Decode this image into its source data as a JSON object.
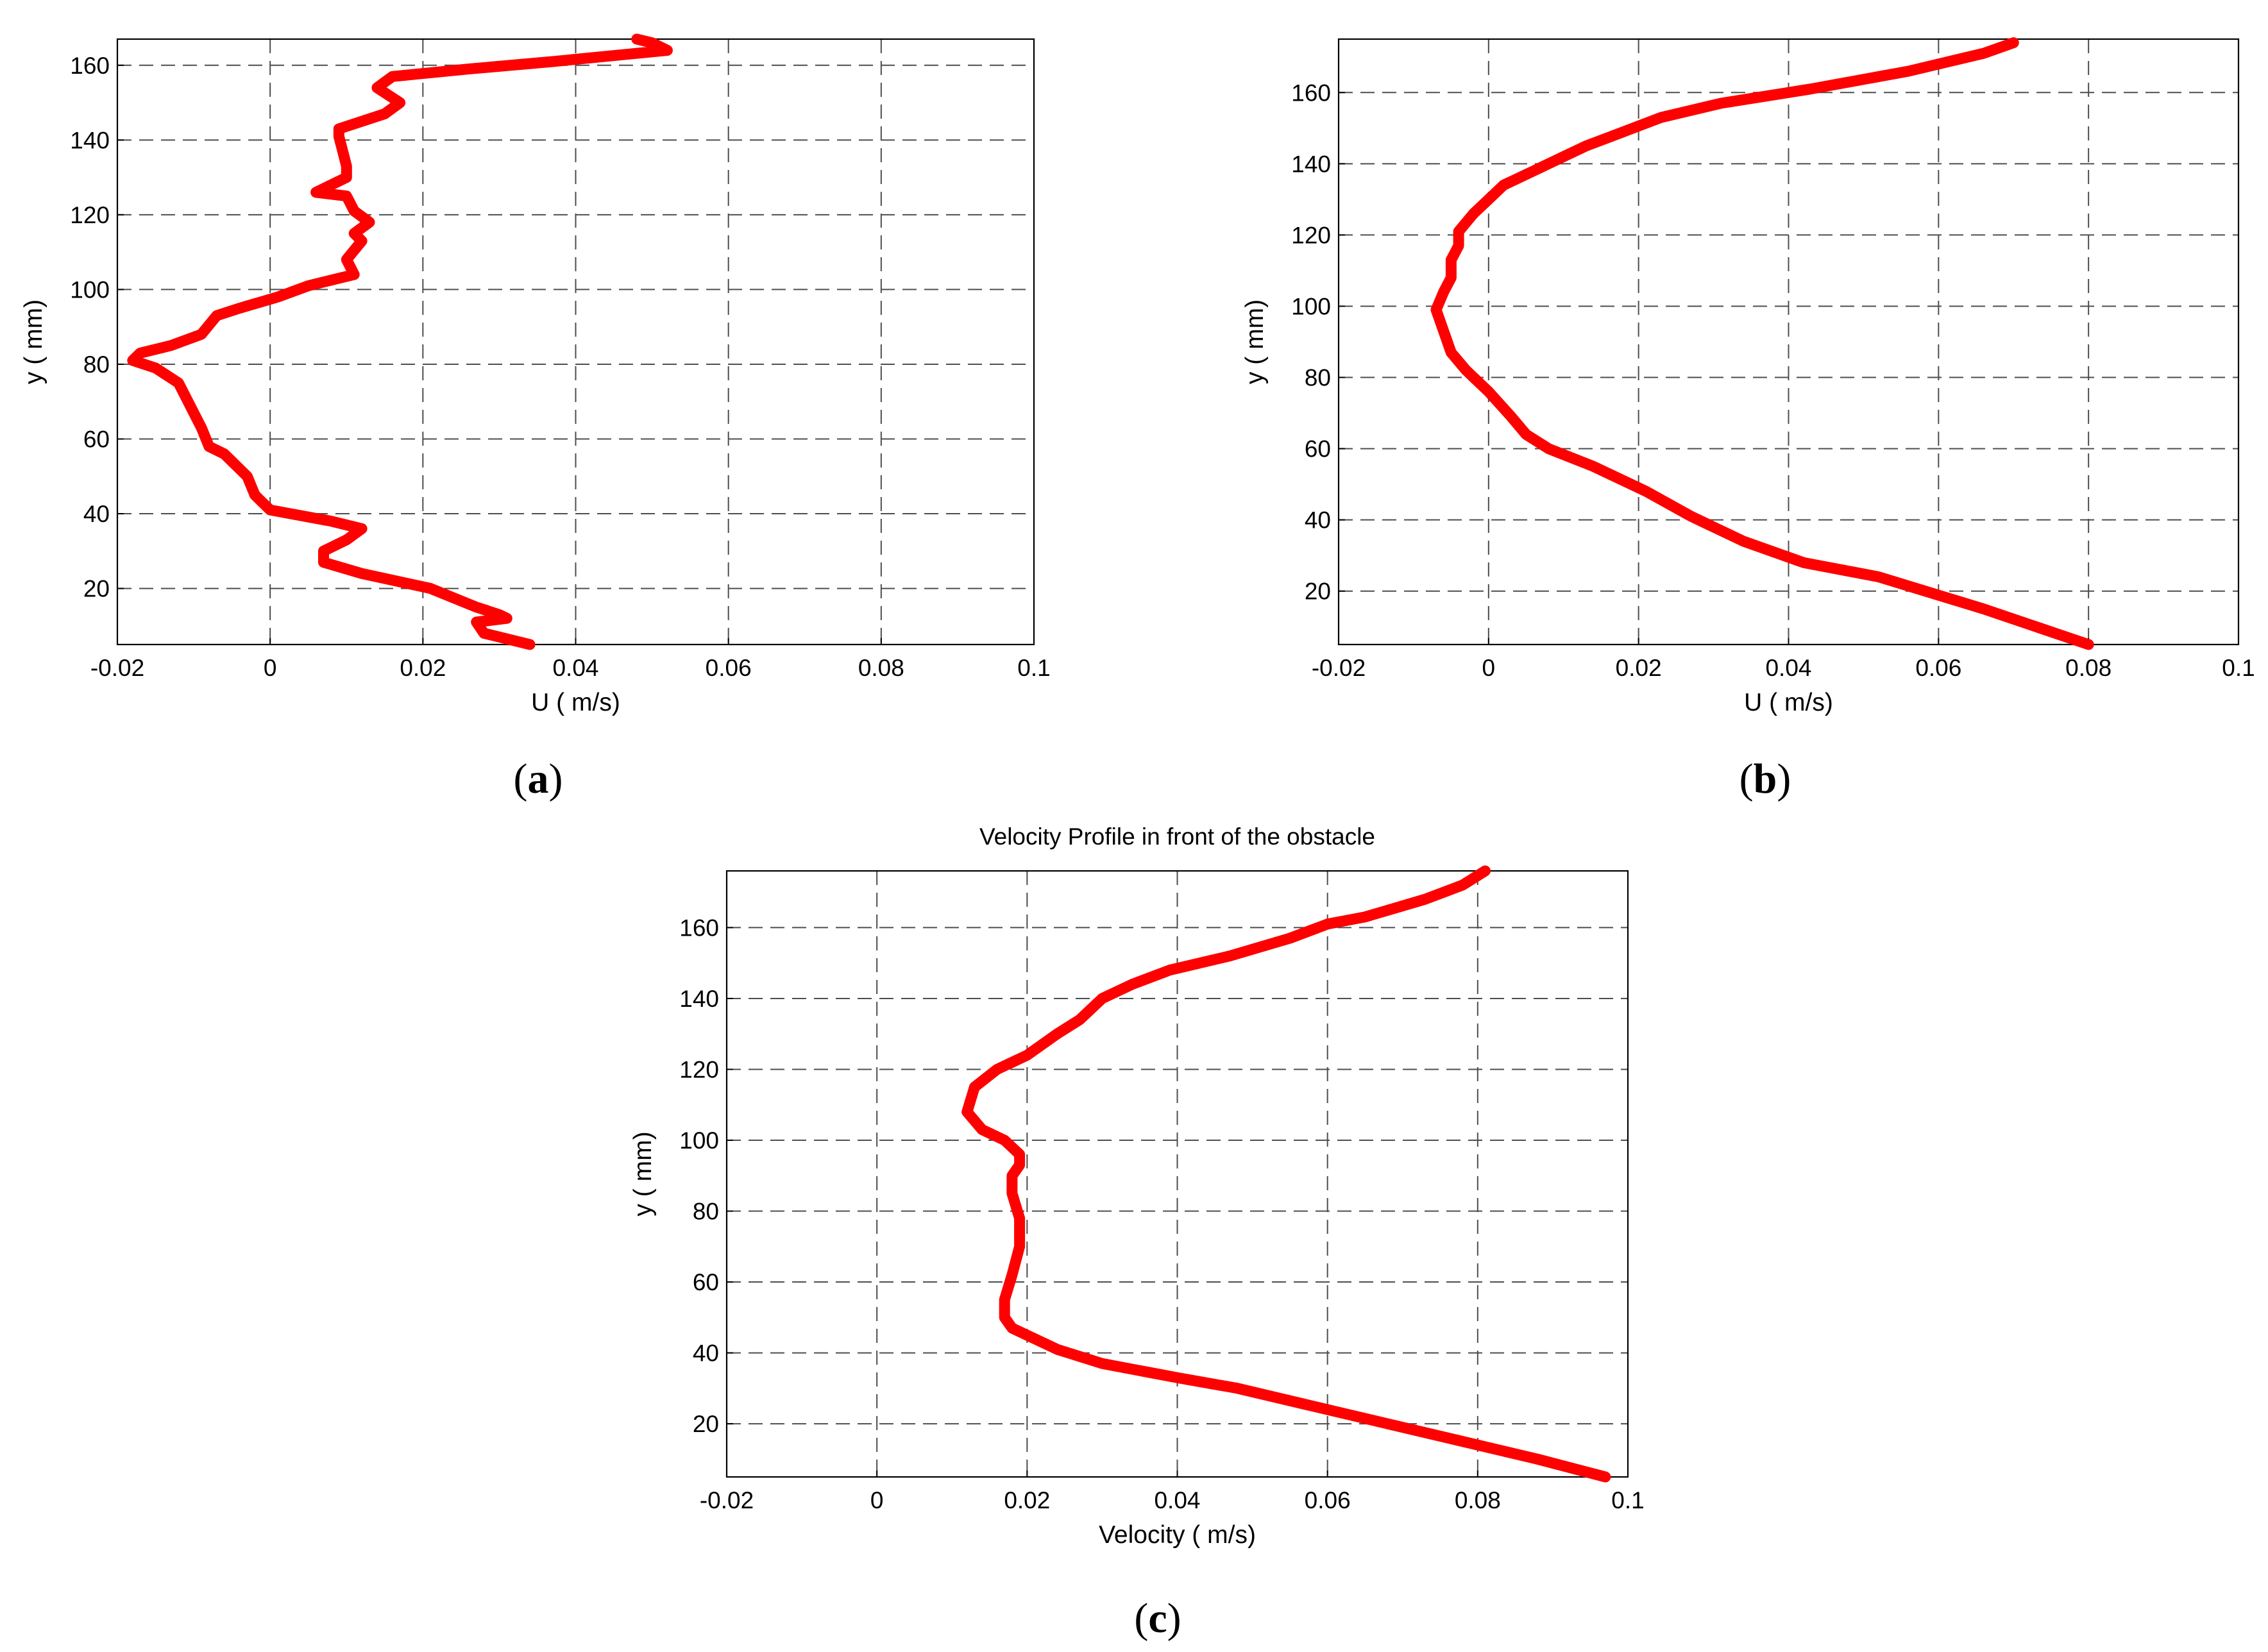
{
  "figure": {
    "panels": [
      {
        "open": "(",
        "letter": "a",
        "close": ")"
      },
      {
        "open": "(",
        "letter": "b",
        "close": ")"
      },
      {
        "open": "(",
        "letter": "c",
        "close": ")"
      }
    ]
  },
  "chart_data": [
    {
      "type": "line",
      "title": "",
      "xlabel": "U ( m/s)",
      "ylabel": "y ( mm)",
      "xlim": [
        -0.02,
        0.1
      ],
      "ylim": [
        5,
        167
      ],
      "xticks": [
        -0.02,
        0,
        0.02,
        0.04,
        0.06,
        0.08,
        0.1
      ],
      "yticks": [
        20,
        40,
        60,
        80,
        100,
        120,
        140,
        160
      ],
      "xtick_labels": [
        "-0.02",
        "0",
        "0.02",
        "0.04",
        "0.06",
        "0.08",
        "0.1"
      ],
      "ytick_labels": [
        "20",
        "40",
        "60",
        "80",
        "100",
        "120",
        "140",
        "160"
      ],
      "grid": true,
      "color": "#ff0000",
      "series": [
        {
          "x": [
            0.034,
            0.028,
            0.027,
            0.031,
            0.03,
            0.027,
            0.021,
            0.012,
            0.007,
            0.007,
            0.01,
            0.012,
            0.008,
            0.0,
            -0.001,
            -0.002,
            -0.003,
            -0.005,
            -0.006,
            -0.008,
            -0.009,
            -0.01,
            -0.012,
            -0.015,
            -0.018,
            -0.017,
            -0.013,
            -0.009,
            -0.007,
            -0.004,
            0.001,
            0.005,
            0.011,
            0.01,
            0.012,
            0.011,
            0.013,
            0.011,
            0.01,
            0.006,
            0.01,
            0.01,
            0.009,
            0.009,
            0.015,
            0.017,
            0.014,
            0.016,
            0.026,
            0.037,
            0.047,
            0.052,
            0.05,
            0.048
          ],
          "y": [
            5,
            8,
            11,
            12,
            13,
            15,
            20,
            24,
            27,
            30,
            33,
            36,
            38,
            41,
            43,
            45,
            50,
            54,
            56,
            58,
            63,
            67,
            75,
            79,
            81,
            83,
            85,
            88,
            93,
            95,
            98,
            101,
            104,
            108,
            113,
            115,
            118,
            121,
            125,
            126,
            130,
            133,
            141,
            143,
            147,
            150,
            154,
            157,
            159,
            161,
            163,
            164,
            166,
            167
          ]
        }
      ]
    },
    {
      "type": "line",
      "title": "",
      "xlabel": "U ( m/s)",
      "ylabel": "y ( mm)",
      "xlim": [
        -0.02,
        0.1
      ],
      "ylim": [
        5,
        175
      ],
      "xticks": [
        -0.02,
        0,
        0.02,
        0.04,
        0.06,
        0.08,
        0.1
      ],
      "yticks": [
        20,
        40,
        60,
        80,
        100,
        120,
        140,
        160
      ],
      "xtick_labels": [
        "-0.02",
        "0",
        "0.02",
        "0.04",
        "0.06",
        "0.08",
        "0.1"
      ],
      "ytick_labels": [
        "20",
        "40",
        "60",
        "80",
        "100",
        "120",
        "140",
        "160"
      ],
      "grid": true,
      "color": "#ff0000",
      "series": [
        {
          "x": [
            0.08,
            0.066,
            0.052,
            0.042,
            0.034,
            0.027,
            0.021,
            0.014,
            0.008,
            0.005,
            0.003,
            0.0,
            -0.003,
            -0.005,
            -0.006,
            -0.007,
            -0.006,
            -0.005,
            -0.005,
            -0.004,
            -0.004,
            -0.002,
            0.0,
            0.002,
            0.006,
            0.01,
            0.013,
            0.018,
            0.023,
            0.031,
            0.043,
            0.056,
            0.066,
            0.07
          ],
          "y": [
            5,
            15,
            24,
            28,
            34,
            41,
            48,
            55,
            60,
            64,
            69,
            76,
            82,
            87,
            93,
            99,
            104,
            108,
            113,
            117,
            121,
            126,
            130,
            134,
            138,
            142,
            145,
            149,
            153,
            157,
            161,
            166,
            171,
            174
          ]
        }
      ]
    },
    {
      "type": "line",
      "title": "Velocity Profile in front of the obstacle",
      "xlabel": "Velocity ( m/s)",
      "ylabel": "y ( mm)",
      "xlim": [
        -0.02,
        0.1
      ],
      "ylim": [
        5,
        176
      ],
      "xticks": [
        -0.02,
        0,
        0.02,
        0.04,
        0.06,
        0.08,
        0.1
      ],
      "yticks": [
        20,
        40,
        60,
        80,
        100,
        120,
        140,
        160
      ],
      "xtick_labels": [
        "-0.02",
        "0",
        "0.02",
        "0.04",
        "0.06",
        "0.08",
        "0.1"
      ],
      "ytick_labels": [
        "20",
        "40",
        "60",
        "80",
        "100",
        "120",
        "140",
        "160"
      ],
      "grid": true,
      "color": "#ff0000",
      "series": [
        {
          "x": [
            0.097,
            0.088,
            0.078,
            0.068,
            0.058,
            0.048,
            0.04,
            0.03,
            0.024,
            0.018,
            0.017,
            0.017,
            0.018,
            0.019,
            0.019,
            0.018,
            0.018,
            0.019,
            0.019,
            0.017,
            0.014,
            0.012,
            0.013,
            0.016,
            0.02,
            0.024,
            0.027,
            0.03,
            0.034,
            0.039,
            0.047,
            0.055,
            0.06,
            0.065,
            0.073,
            0.078,
            0.081
          ],
          "y": [
            5,
            10,
            15,
            20,
            25,
            30,
            33,
            37,
            41,
            47,
            50,
            55,
            62,
            70,
            78,
            85,
            90,
            93,
            96,
            100,
            103,
            108,
            115,
            120,
            124,
            130,
            134,
            140,
            144,
            148,
            152,
            157,
            161,
            163,
            168,
            172,
            176
          ]
        }
      ]
    }
  ]
}
